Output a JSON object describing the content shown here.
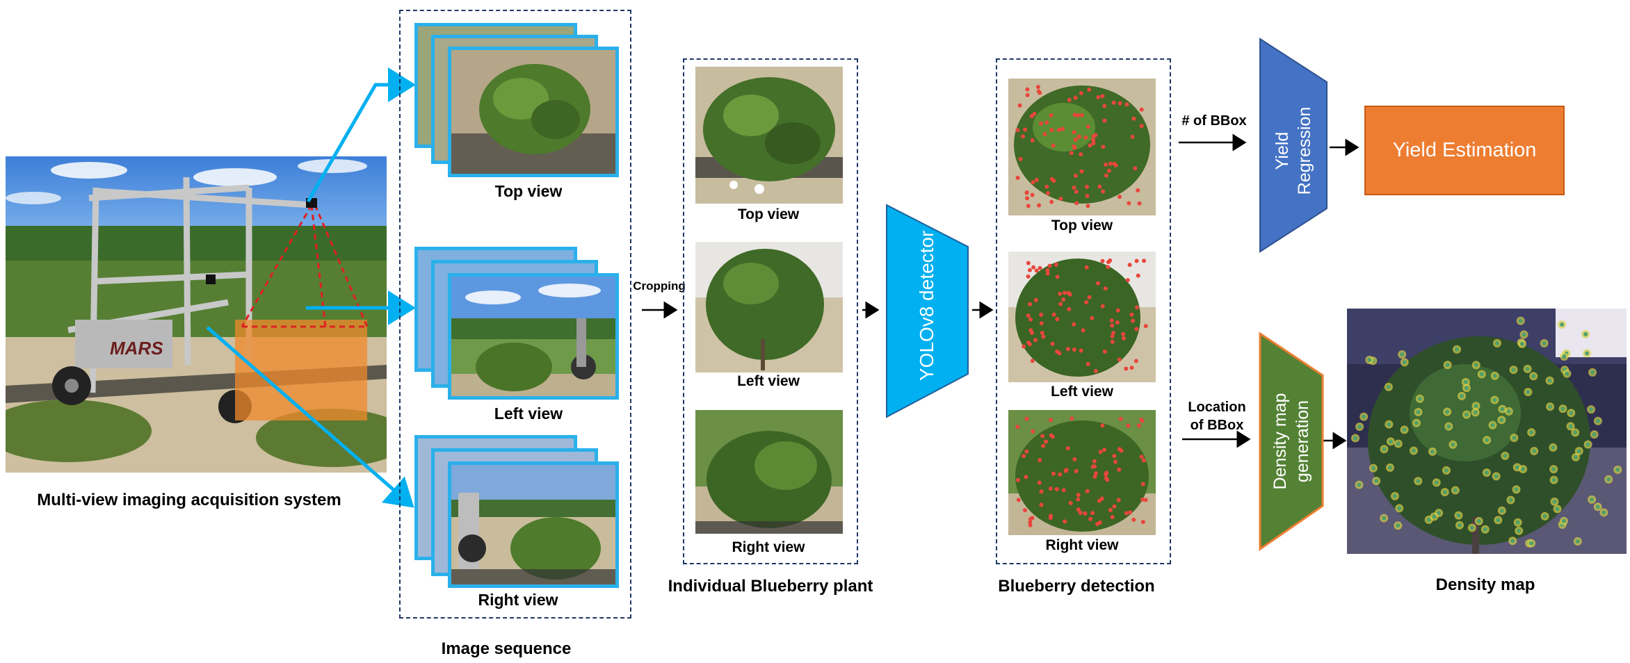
{
  "labels": {
    "acquisition": "Multi-view imaging acquisition system",
    "image_sequence": "Image sequence",
    "seq_top": "Top view",
    "seq_left": "Left view",
    "seq_right": "Right view",
    "cropping": "Cropping",
    "plant_title": "Individual Blueberry plant",
    "plant_top": "Top view",
    "plant_left": "Left view",
    "plant_right": "Right view",
    "detector": "YOLOv8 detector",
    "detection_title": "Blueberry detection",
    "det_top": "Top view",
    "det_left": "Left view",
    "det_right": "Right view",
    "num_bbox": "# of BBox",
    "yield_regression_line1": "Yield",
    "yield_regression_line2": "Regression",
    "yield_estimation": "Yield Estimation",
    "location_line1": "Location",
    "location_line2": "of BBox",
    "density_gen_line1": "Density map",
    "density_gen_line2": "generation",
    "density_map": "Density map"
  },
  "robot_logo": "MARS",
  "colors": {
    "cyan": "#00b0f0",
    "frame_blue": "#2ab0ea",
    "dash_navy": "#1f3864",
    "regression_blue": "#4472c4",
    "orange": "#ed7d31",
    "green": "#548235",
    "berry_red": "#e8473c"
  }
}
